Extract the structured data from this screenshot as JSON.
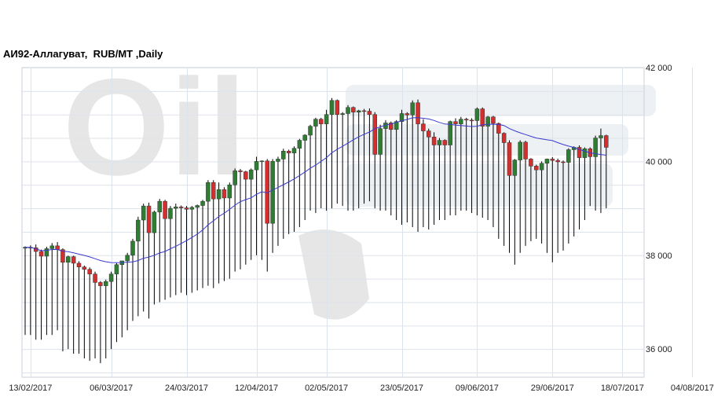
{
  "chart_data": {
    "type": "candlestick",
    "title": "АИ92-Аллагуват,  RUB/MT ,Daily",
    "watermark": "Oil",
    "ylim": [
      35400,
      42000
    ],
    "yticks": [
      {
        "value": 36000,
        "label": "36 000"
      },
      {
        "value": 38000,
        "label": "38 000"
      },
      {
        "value": 40000,
        "label": "40 000"
      },
      {
        "value": 42000,
        "label": "42 000"
      }
    ],
    "xticks": [
      {
        "index": 1,
        "label": "13/02/2017"
      },
      {
        "index": 16,
        "label": "06/03/2017"
      },
      {
        "index": 30,
        "label": "24/03/2017"
      },
      {
        "index": 43,
        "label": "12/04/2017"
      },
      {
        "index": 56,
        "label": "02/05/2017"
      },
      {
        "index": 70,
        "label": "23/05/2017"
      },
      {
        "index": 84,
        "label": "09/06/2017"
      },
      {
        "index": 98,
        "label": "29/06/2017"
      },
      {
        "index": 111,
        "label": "18/07/2017"
      },
      {
        "index": 124,
        "label": "04/08/2017"
      }
    ],
    "colors": {
      "up": "#2e7d32",
      "down": "#d32f2f",
      "wick": "#000000",
      "ma": "#3a3ad0",
      "grid": "#dde3ea",
      "axis": "#c8d0d8",
      "watermark": "#e6e6e6"
    },
    "candles": [
      [
        38150,
        38190,
        38130,
        38170
      ],
      [
        38170,
        38210,
        38150,
        38160
      ],
      [
        38160,
        38230,
        38100,
        38080
      ],
      [
        38080,
        38120,
        37920,
        37980
      ],
      [
        37980,
        38180,
        37970,
        38140
      ],
      [
        38140,
        38260,
        38100,
        38200
      ],
      [
        38200,
        38280,
        38120,
        38120
      ],
      [
        38120,
        38150,
        37850,
        37850
      ],
      [
        37850,
        37990,
        37840,
        37970
      ],
      [
        37970,
        37990,
        37800,
        37830
      ],
      [
        37830,
        37870,
        37720,
        37750
      ],
      [
        37750,
        37780,
        37660,
        37700
      ],
      [
        37700,
        37740,
        37580,
        37600
      ],
      [
        37600,
        37650,
        37450,
        37420
      ],
      [
        37420,
        37450,
        37330,
        37350
      ],
      [
        37350,
        37480,
        37320,
        37440
      ],
      [
        37440,
        37650,
        37420,
        37600
      ],
      [
        37600,
        37830,
        37560,
        37800
      ],
      [
        37800,
        37860,
        37780,
        37880
      ],
      [
        37880,
        38050,
        37850,
        38000
      ],
      [
        38000,
        38350,
        37990,
        38300
      ],
      [
        38300,
        38820,
        38280,
        38750
      ],
      [
        38750,
        39100,
        38720,
        39050
      ],
      [
        39050,
        39120,
        38400,
        38480
      ],
      [
        38480,
        38950,
        38460,
        38920
      ],
      [
        38920,
        39200,
        38880,
        39150
      ],
      [
        39150,
        39180,
        38750,
        38780
      ],
      [
        38780,
        39050,
        38760,
        39000
      ],
      [
        39000,
        39100,
        38960,
        39030
      ],
      [
        39030,
        39060,
        38990,
        39010
      ],
      [
        39010,
        39050,
        38950,
        38980
      ],
      [
        38980,
        39050,
        38950,
        39020
      ],
      [
        39020,
        39080,
        38980,
        39060
      ],
      [
        39060,
        39180,
        39030,
        39150
      ],
      [
        39150,
        39600,
        39120,
        39550
      ],
      [
        39550,
        39600,
        39200,
        39200
      ],
      [
        39200,
        39550,
        39180,
        39400
      ],
      [
        39400,
        39450,
        39180,
        39220
      ],
      [
        39220,
        39550,
        39200,
        39500
      ],
      [
        39500,
        39850,
        39480,
        39800
      ],
      [
        39800,
        39840,
        39760,
        39780
      ],
      [
        39780,
        39800,
        39600,
        39620
      ],
      [
        39620,
        39850,
        39600,
        39820
      ],
      [
        39820,
        40100,
        39800,
        40000
      ],
      [
        40000,
        40020,
        39960,
        40010
      ],
      [
        40010,
        40050,
        38650,
        38680
      ],
      [
        38680,
        40050,
        38660,
        40000
      ],
      [
        40000,
        40100,
        39950,
        40050
      ],
      [
        40050,
        40270,
        40020,
        40220
      ],
      [
        40220,
        40250,
        40160,
        40180
      ],
      [
        40180,
        40320,
        40160,
        40280
      ],
      [
        40280,
        40480,
        40260,
        40450
      ],
      [
        40450,
        40580,
        40430,
        40560
      ],
      [
        40560,
        40780,
        40540,
        40750
      ],
      [
        40750,
        40930,
        40720,
        40900
      ],
      [
        40900,
        40930,
        40780,
        40800
      ],
      [
        40800,
        41100,
        40780,
        41000
      ],
      [
        41000,
        41350,
        40980,
        41300
      ],
      [
        41300,
        41320,
        40960,
        41000
      ],
      [
        41000,
        41050,
        40980,
        41020
      ],
      [
        41020,
        41200,
        40980,
        41150
      ],
      [
        41150,
        41170,
        41040,
        41050
      ],
      [
        41050,
        41100,
        41030,
        41080
      ],
      [
        41080,
        41120,
        41060,
        41070
      ],
      [
        41070,
        41130,
        40980,
        41000
      ],
      [
        41000,
        41050,
        40150,
        40150
      ],
      [
        40150,
        40780,
        40130,
        40700
      ],
      [
        40700,
        40880,
        40600,
        40820
      ],
      [
        40820,
        40850,
        40650,
        40680
      ],
      [
        40680,
        40880,
        40650,
        40850
      ],
      [
        40850,
        41100,
        40820,
        41020
      ],
      [
        41020,
        41050,
        40960,
        40990
      ],
      [
        40990,
        41300,
        40970,
        41250
      ],
      [
        41250,
        41320,
        40770,
        40800
      ],
      [
        40800,
        40900,
        40620,
        40650
      ],
      [
        40650,
        40700,
        40500,
        40520
      ],
      [
        40520,
        40620,
        40340,
        40350
      ],
      [
        40350,
        40500,
        40320,
        40450
      ],
      [
        40450,
        40470,
        40330,
        40350
      ],
      [
        40350,
        40870,
        40330,
        40850
      ],
      [
        40850,
        40920,
        40760,
        40800
      ],
      [
        40800,
        40950,
        40780,
        40900
      ],
      [
        40900,
        40930,
        40860,
        40880
      ],
      [
        40880,
        40920,
        40850,
        40870
      ],
      [
        40870,
        41150,
        40850,
        41120
      ],
      [
        41120,
        41150,
        40720,
        40750
      ],
      [
        40750,
        40970,
        40720,
        40950
      ],
      [
        40950,
        40970,
        40790,
        40810
      ],
      [
        40810,
        40830,
        40570,
        40600
      ],
      [
        40600,
        40620,
        40350,
        40400
      ],
      [
        40400,
        40450,
        39700,
        39700
      ],
      [
        39700,
        40050,
        39680,
        40030
      ],
      [
        40030,
        40450,
        40010,
        40410
      ],
      [
        40410,
        40440,
        40020,
        40050
      ],
      [
        40050,
        40070,
        39900,
        39900
      ],
      [
        39900,
        39930,
        39800,
        39820
      ],
      [
        39820,
        40000,
        39790,
        39960
      ],
      [
        39960,
        40060,
        39940,
        40050
      ],
      [
        40050,
        40090,
        39990,
        40020
      ],
      [
        40020,
        40060,
        39960,
        39990
      ],
      [
        39990,
        40020,
        39970,
        39980
      ],
      [
        39980,
        40280,
        39960,
        40250
      ],
      [
        40250,
        40320,
        40200,
        40300
      ],
      [
        40300,
        40340,
        40080,
        40080
      ],
      [
        40080,
        40300,
        40060,
        40270
      ],
      [
        40270,
        40300,
        40080,
        40100
      ],
      [
        40100,
        40550,
        40080,
        40500
      ],
      [
        40500,
        40700,
        40480,
        40550
      ],
      [
        40550,
        40570,
        40270,
        40300
      ]
    ],
    "low_spikes": [
      36300,
      36300,
      36200,
      36200,
      36300,
      36300,
      36400,
      35950,
      36000,
      35900,
      35900,
      35800,
      35750,
      35800,
      35700,
      35800,
      36000,
      36150,
      36250,
      36400,
      36600,
      36700,
      36800,
      36650,
      36950,
      37000,
      37050,
      37100,
      37150,
      37200,
      37150,
      37200,
      37250,
      37300,
      37350,
      37300,
      37400,
      37450,
      37500,
      37650,
      37700,
      37800,
      37900,
      38000,
      37900,
      37650,
      38050,
      38200,
      38350,
      38450,
      38500,
      38600,
      38750,
      38950,
      38900,
      39000,
      38950,
      39000,
      39100,
      39050,
      38950,
      38950,
      39000,
      39100,
      39150,
      39000,
      38950,
      38950,
      38850,
      38750,
      38650,
      38700,
      38600,
      38500,
      38600,
      38550,
      38650,
      38750,
      38750,
      38850,
      38850,
      38950,
      38950,
      38900,
      38850,
      38800,
      38750,
      38600,
      38350,
      38200,
      38050,
      37800,
      38050,
      38200,
      38300,
      38350,
      38250,
      38050,
      37850,
      38050,
      38100,
      38250,
      38400,
      38550,
      38750,
      39050,
      38950,
      38900,
      39000
    ]
  }
}
